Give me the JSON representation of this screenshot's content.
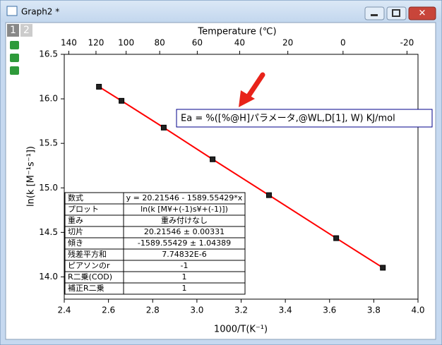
{
  "window": {
    "title": "Graph2 *",
    "layer_tabs": [
      "1",
      "2"
    ]
  },
  "chart_data": {
    "type": "line",
    "xlabel": "1000/T(K⁻¹)",
    "ylabel": "ln(k [M⁻¹s⁻¹])",
    "x2label": "Temperature (℃)",
    "x": [
      2.557,
      2.659,
      2.85,
      3.071,
      3.326,
      3.63,
      3.841
    ],
    "series": [
      {
        "name": "ln(k)",
        "color": "#ff0000",
        "values": [
          16.136,
          15.978,
          15.677,
          15.321,
          14.918,
          14.435,
          14.103
        ]
      }
    ],
    "xlim": [
      2.4,
      4.0
    ],
    "xticks": [
      2.4,
      2.6,
      2.8,
      {
        "value": 3,
        "label": "3.0"
      },
      3.2,
      3.4,
      3.6,
      3.8,
      {
        "value": 4,
        "label": "4.0"
      }
    ],
    "ylim": [
      13.75,
      16.5
    ],
    "yticks": [
      {
        "value": 14,
        "label": "14.0"
      },
      14.5,
      {
        "value": 15,
        "label": "15.0"
      },
      15.5,
      {
        "value": 16,
        "label": "16.0"
      },
      16.5
    ],
    "x2ticks": [
      140,
      120,
      100,
      80,
      60,
      40,
      20,
      0,
      -20
    ]
  },
  "annotation": "Ea = %([%@H]パラメータ,@WL,D[1], W) KJ/mol",
  "table": {
    "rows": [
      [
        "数式",
        "y = 20.21546 - 1589.55429*x"
      ],
      [
        "プロット",
        "ln(k [M¥+(-1)s¥+(-1)])"
      ],
      [
        "重み",
        "重み付けなし"
      ],
      [
        "切片",
        "20.21546 ± 0.00331"
      ],
      [
        "傾き",
        "-1589.55429 ± 1.04389"
      ],
      [
        "残差平方和",
        "7.74832E-6"
      ],
      [
        "ピアソンのr",
        "-1"
      ],
      [
        "R二乗(COD)",
        "1"
      ],
      [
        "補正R二乗",
        "1"
      ]
    ]
  }
}
